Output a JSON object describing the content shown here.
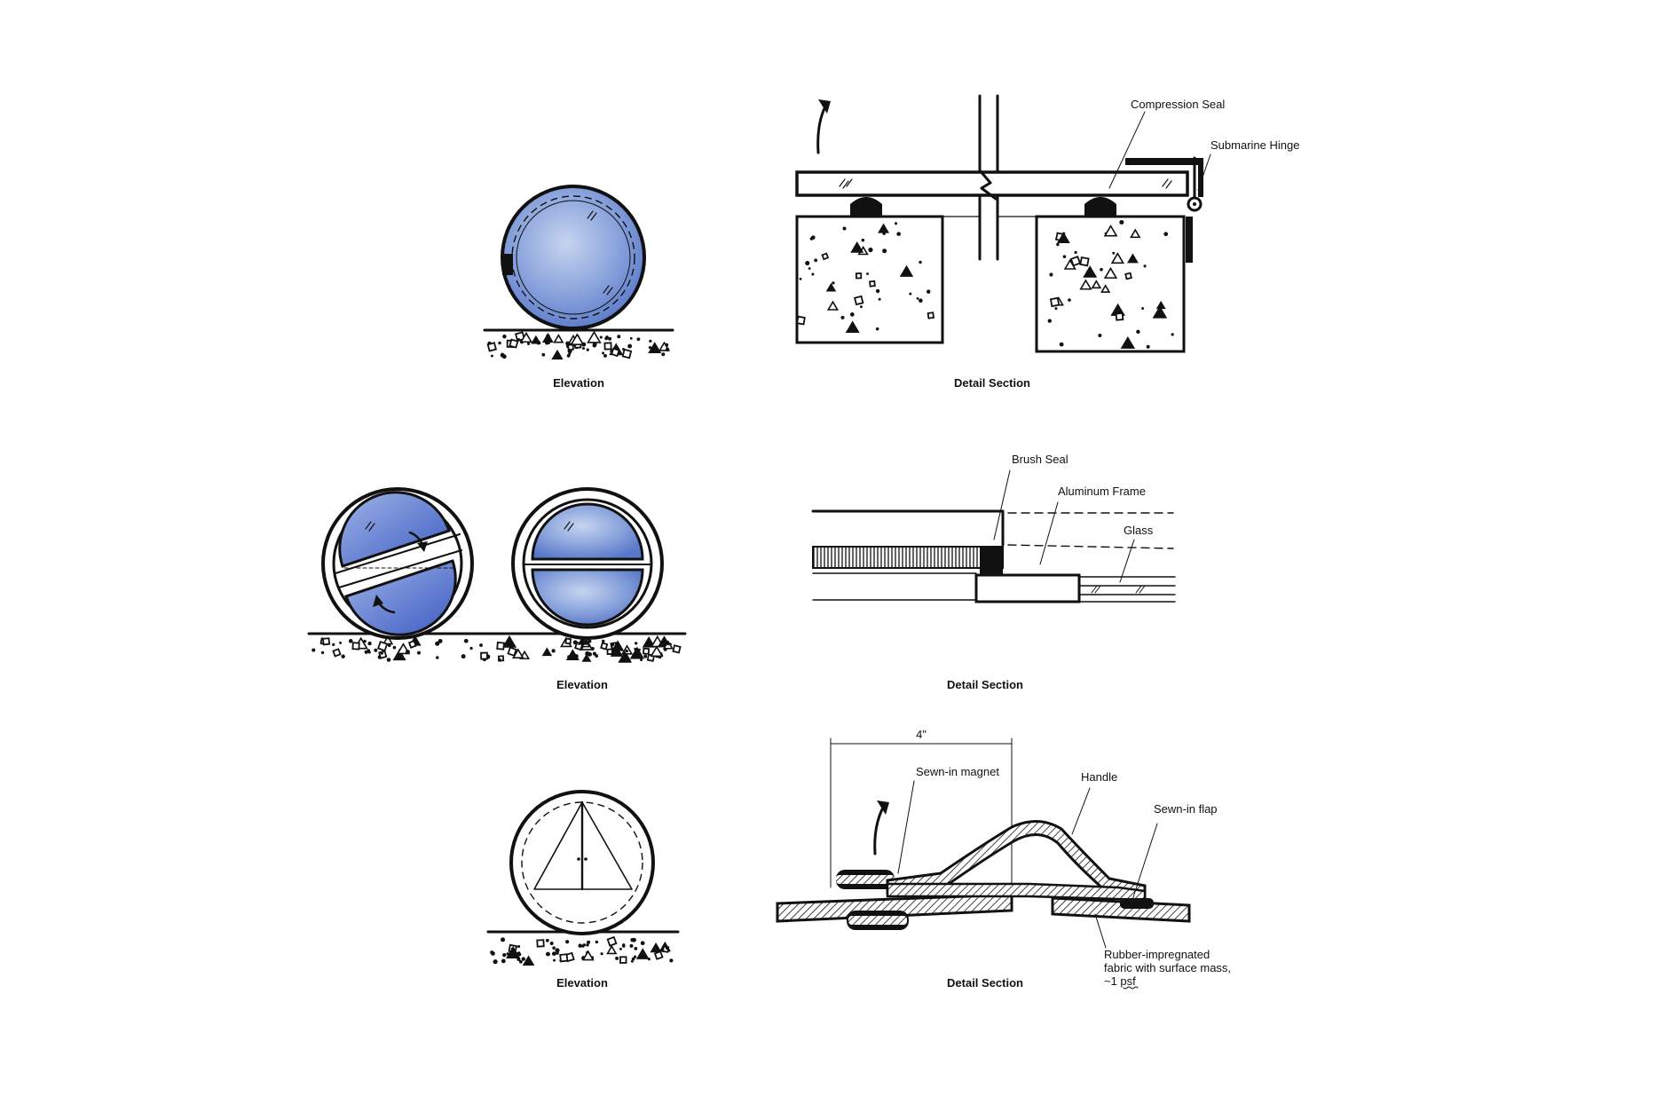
{
  "captions": {
    "row1_left": "Elevation",
    "row1_right": "Detail Section",
    "row2_left": "Elevation",
    "row2_right": "Detail Section",
    "row3_left": "Elevation",
    "row3_right": "Detail Section"
  },
  "labels": {
    "compression_seal": "Compression Seal",
    "submarine_hinge": "Submarine Hinge",
    "brush_seal": "Brush Seal",
    "aluminum_frame": "Aluminum Frame",
    "glass": "Glass",
    "dimension": "4\"",
    "sewn_in_magnet": "Sewn-in magnet",
    "handle": "Handle",
    "sewn_in_flap": "Sewn-in flap",
    "fabric_line1": "Rubber-impregnated",
    "fabric_line2": "fabric with surface mass,",
    "fabric_line3": "~1 psf"
  },
  "colors": {
    "ink": "#111111",
    "glass_blue": "#7d9ad8",
    "glass_blue_dark": "#3f5fc4",
    "glass_blue_light": "#b8c8ec",
    "paper": "#ffffff"
  },
  "icons": [
    "rotation-arrow-icon",
    "glass-tick-icon",
    "concrete-stipple-icon"
  ]
}
